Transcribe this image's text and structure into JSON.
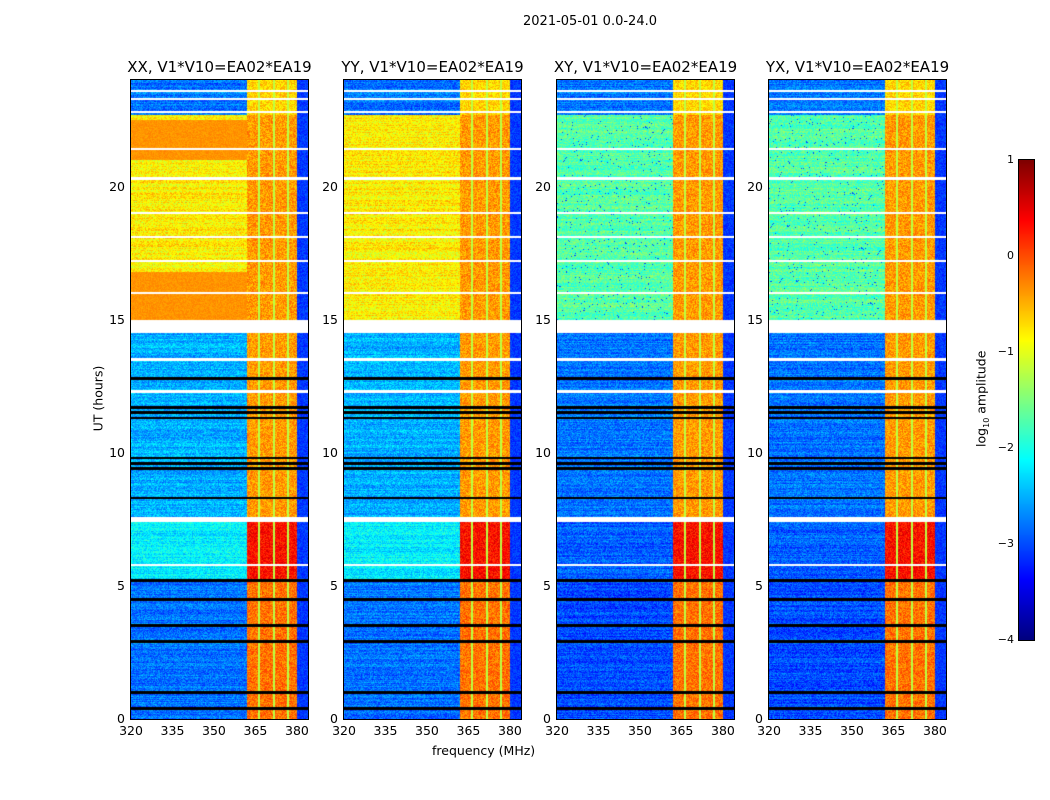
{
  "figure_title": "2021-05-01 0.0-24.0",
  "chart_data": [
    {
      "type": "heatmap",
      "title": "XX, V1*V10=EA02*EA19",
      "pol": "parallel"
    },
    {
      "type": "heatmap",
      "title": "YY, V1*V10=EA02*EA19",
      "pol": "parallel"
    },
    {
      "type": "heatmap",
      "title": "XY, V1*V10=EA02*EA19",
      "pol": "cross"
    },
    {
      "type": "heatmap",
      "title": "YX, V1*V10=EA02*EA19",
      "pol": "cross"
    }
  ],
  "axes": {
    "xlabel": "frequency (MHz)",
    "ylabel": "UT (hours)",
    "xlim": [
      320,
      384
    ],
    "ylim": [
      0,
      24
    ],
    "xticks": [
      "320",
      "335",
      "350",
      "365",
      "380"
    ],
    "xtick_values": [
      320,
      335,
      350,
      365,
      380
    ],
    "yticks": [
      "0",
      "5",
      "10",
      "15",
      "20"
    ],
    "ytick_values": [
      0,
      5,
      10,
      15,
      20
    ]
  },
  "colorbar": {
    "label": "log10 amplitude",
    "label_main": "log",
    "label_sub": "10",
    "label_rest": " amplitude",
    "range": [
      -4,
      1
    ],
    "ticks": [
      "1",
      "0",
      "−1",
      "−2",
      "−3",
      "−4"
    ],
    "tick_values": [
      1,
      0,
      -1,
      -2,
      -3,
      -4
    ],
    "colormap": "jet"
  },
  "model": {
    "time_segments": [
      {
        "from": 0,
        "to": 5.2,
        "parallel": -2.8,
        "cross": -3.0,
        "rfi": -0.3
      },
      {
        "from": 5.2,
        "to": 7.4,
        "parallel": -2.2,
        "cross": -2.9,
        "rfi": 0.2
      },
      {
        "from": 7.6,
        "to": 14.5,
        "parallel": -2.5,
        "cross": -2.8,
        "rfi": -0.5
      },
      {
        "from": 15.0,
        "to": 22.7,
        "parallel": -0.8,
        "cross": -1.7,
        "rfi": -0.5
      },
      {
        "from": 22.7,
        "to": 24,
        "parallel": -2.8,
        "cross": -2.8,
        "rfi": -0.8
      }
    ],
    "parallel_bright_segments": [
      [
        15.0,
        16.8
      ],
      [
        21.0,
        22.5
      ]
    ],
    "rfi_bands_mhz": [
      [
        362,
        366
      ],
      [
        366.6,
        371.5
      ],
      [
        372.2,
        376.5
      ],
      [
        377.2,
        380
      ]
    ],
    "flagged_white_hours": [
      7.45,
      7.55,
      14.6,
      14.8,
      16.0,
      17.2,
      18.1,
      19.0,
      20.3,
      21.4,
      22.8,
      23.3,
      23.6,
      5.8,
      12.3,
      13.5
    ],
    "flagged_black_hours": [
      0.4,
      1.0,
      2.9,
      3.5,
      4.5,
      5.2,
      8.3,
      9.4,
      9.6,
      9.8,
      11.3,
      11.5,
      11.7,
      12.8
    ]
  }
}
